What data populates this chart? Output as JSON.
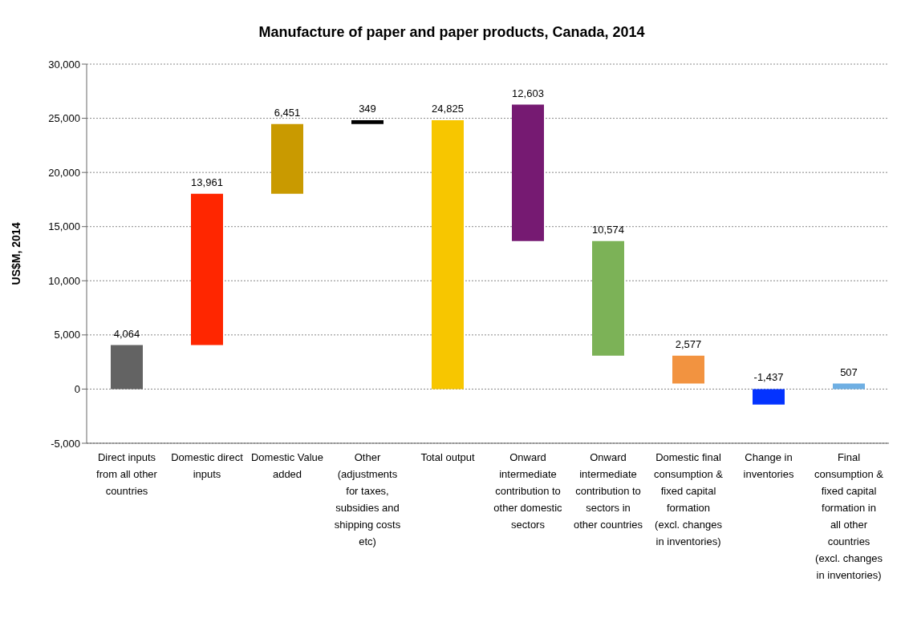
{
  "chart_data": {
    "type": "bar",
    "title": "Manufacture of paper and paper products, Canada, 2014",
    "ylabel": "US$M, 2014",
    "categories": [
      "Direct inputs from all other countries",
      "Domestic direct inputs",
      "Domestic Value added",
      "Other (adjustments for taxes, subsidies and shipping costs etc)",
      "Total output",
      "Onward intermediate contribution to other domestic sectors",
      "Onward intermediate contribution to sectors in other countries",
      "Domestic final consumption & fixed capital formation (excl. changes in inventories)",
      "Change in inventories",
      "Final consumption & fixed capital formation in all other countries (excl. changes in inventories)"
    ],
    "values": [
      4064,
      13961,
      6451,
      349,
      24825,
      12603,
      10574,
      2577,
      -1437,
      507
    ],
    "base": [
      0,
      4064,
      18025,
      24476,
      0,
      13658,
      3084,
      507,
      0,
      0
    ],
    "colors": [
      "#636363",
      "#ff2600",
      "#c99a00",
      "#000000",
      "#f7c600",
      "#761a72",
      "#7cb257",
      "#f29340",
      "#0433ff",
      "#6fafe3"
    ],
    "value_labels": [
      "4,064",
      "13,961",
      "6,451",
      "349",
      "24,825",
      "12,603",
      "10,574",
      "2,577",
      "-1,437",
      "507"
    ],
    "ylim": [
      -5000,
      30000
    ],
    "yticks": [
      {
        "value": -5000,
        "label": "-5,000"
      },
      {
        "value": 0,
        "label": "0"
      },
      {
        "value": 5000,
        "label": "5,000"
      },
      {
        "value": 10000,
        "label": "10,000"
      },
      {
        "value": 15000,
        "label": "15,000"
      },
      {
        "value": 20000,
        "label": "20,000"
      },
      {
        "value": 25000,
        "label": "25,000"
      },
      {
        "value": 30000,
        "label": "30,000"
      }
    ],
    "grid": "y"
  }
}
